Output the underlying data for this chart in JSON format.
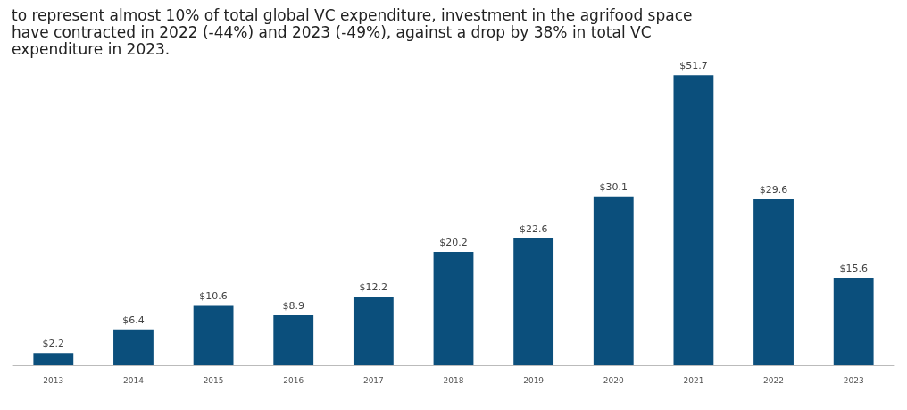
{
  "chart_data": {
    "type": "bar",
    "title": "to represent almost 10% of total global VC expenditure, investment in the agrifood space have contracted in 2022 (-44%) and 2023 (-49%), against a drop by 38% in total VC expenditure in 2023.",
    "categories": [
      "2013",
      "2014",
      "2015",
      "2016",
      "2017",
      "2018",
      "2019",
      "2020",
      "2021",
      "2022",
      "2023"
    ],
    "values": [
      2.2,
      6.4,
      10.6,
      8.9,
      12.2,
      20.2,
      22.6,
      30.1,
      51.7,
      29.6,
      15.6
    ],
    "value_labels": [
      "$2.2",
      "$6.4",
      "$10.6",
      "$8.9",
      "$12.2",
      "$20.2",
      "$22.6",
      "$30.1",
      "$51.7",
      "$29.6",
      "$15.6"
    ],
    "color": "#0b4f7c"
  }
}
